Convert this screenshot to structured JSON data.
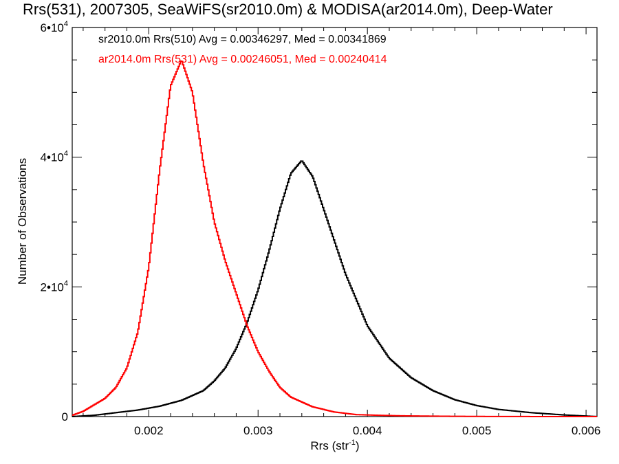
{
  "chart_data": {
    "type": "line",
    "title": "Rrs(531), 2007305, SeaWiFS(sr2010.0m) & MODISA(ar2014.0m), Deep-Water",
    "xlabel": "Rrs (str",
    "xlabel_sup": "-1",
    "xlabel_end": ")",
    "ylabel": "Number of Observations",
    "xlim": [
      0.0013,
      0.0061
    ],
    "ylim": [
      0,
      60000
    ],
    "grid": false,
    "x_ticks": [
      {
        "value": 0.002,
        "label": "0.002"
      },
      {
        "value": 0.003,
        "label": "0.003"
      },
      {
        "value": 0.004,
        "label": "0.004"
      },
      {
        "value": 0.005,
        "label": "0.005"
      },
      {
        "value": 0.006,
        "label": "0.006"
      }
    ],
    "y_ticks": [
      {
        "value": 0,
        "label": "0",
        "sup": ""
      },
      {
        "value": 20000,
        "label": "2•10",
        "sup": "4"
      },
      {
        "value": 40000,
        "label": "4•10",
        "sup": "4"
      },
      {
        "value": 60000,
        "label": "6•10",
        "sup": "4"
      }
    ],
    "series": [
      {
        "name": "sr2010.0m Rrs(510) Avg = 0.00346297, Med = 0.00341869",
        "color": "#000000",
        "x": [
          0.0013,
          0.0015,
          0.0017,
          0.0019,
          0.0021,
          0.0023,
          0.0025,
          0.0026,
          0.0027,
          0.0028,
          0.0029,
          0.003,
          0.0031,
          0.0032,
          0.0033,
          0.0034,
          0.0035,
          0.0036,
          0.0037,
          0.0038,
          0.004,
          0.0042,
          0.0044,
          0.0046,
          0.0048,
          0.005,
          0.0052,
          0.0055,
          0.0058,
          0.0061
        ],
        "y": [
          0,
          200,
          600,
          1000,
          1600,
          2500,
          4000,
          5500,
          7500,
          10500,
          14500,
          19500,
          25500,
          32000,
          37500,
          39500,
          37000,
          32000,
          27000,
          22000,
          14000,
          9000,
          6000,
          4000,
          2600,
          1700,
          1100,
          600,
          250,
          0
        ]
      },
      {
        "name": "ar2014.0m Rrs(531) Avg = 0.00246051, Med = 0.00240414",
        "color": "#ff0000",
        "x": [
          0.0013,
          0.0014,
          0.0015,
          0.0016,
          0.0017,
          0.0018,
          0.0019,
          0.002,
          0.0021,
          0.0022,
          0.0023,
          0.0024,
          0.0025,
          0.0026,
          0.0027,
          0.0028,
          0.0029,
          0.003,
          0.0031,
          0.0032,
          0.0033,
          0.0035,
          0.0037,
          0.0039,
          0.0041,
          0.0043,
          0.0045,
          0.0048,
          0.0052,
          0.0061
        ],
        "y": [
          200,
          800,
          1800,
          2800,
          4500,
          7500,
          13000,
          23000,
          38000,
          51000,
          55000,
          50000,
          39000,
          30000,
          24000,
          19000,
          14000,
          10000,
          7000,
          4500,
          3000,
          1500,
          700,
          300,
          200,
          120,
          80,
          40,
          10,
          0
        ]
      }
    ]
  }
}
